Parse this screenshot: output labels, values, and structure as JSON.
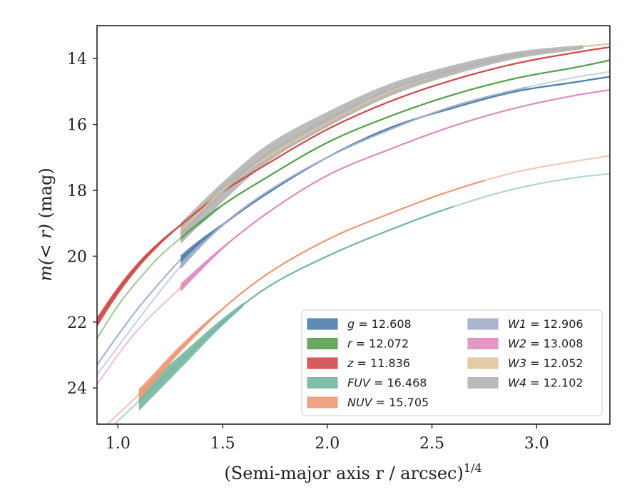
{
  "chart_data": {
    "type": "line",
    "xlabel": "(Semi-major axis r / arcsec)",
    "xlabel_exponent": "1/4",
    "ylabel_math": "m(< r)",
    "ylabel_unit": " (mag)",
    "xlim": [
      0.9,
      3.35
    ],
    "ylim": [
      25.1,
      13.0
    ],
    "y_inverted": true,
    "xticks": [
      1.0,
      1.5,
      2.0,
      2.5,
      3.0
    ],
    "xtick_labels": [
      "1.0",
      "1.5",
      "2.0",
      "2.5",
      "3.0"
    ],
    "yticks": [
      14,
      16,
      18,
      20,
      22,
      24
    ],
    "ytick_labels": [
      "14",
      "16",
      "18",
      "20",
      "22",
      "24"
    ],
    "grid": false,
    "legend_placement": "lower-right",
    "legend_columns": 2,
    "series": [
      {
        "name": "g",
        "value": "12.608",
        "color": "#4c7fad",
        "x": [
          0.9,
          1.0,
          1.1,
          1.2,
          1.3,
          1.5,
          1.7,
          2.0,
          2.3,
          2.6,
          2.9,
          3.2,
          3.35
        ],
        "y": [
          23.3,
          22.4,
          21.55,
          20.8,
          20.1,
          19.05,
          18.15,
          17.0,
          16.1,
          15.5,
          15.0,
          14.7,
          14.55
        ],
        "solid_range": [
          1.3,
          3.35
        ],
        "band_x": [
          1.3,
          1.55
        ],
        "band_width": 0.25
      },
      {
        "name": "r",
        "value": "12.072",
        "color": "#59a14f",
        "x": [
          0.9,
          1.0,
          1.1,
          1.2,
          1.3,
          1.5,
          1.7,
          2.0,
          2.3,
          2.6,
          2.9,
          3.2,
          3.35
        ],
        "y": [
          22.5,
          21.5,
          20.7,
          20.0,
          19.45,
          18.45,
          17.65,
          16.55,
          15.75,
          15.1,
          14.6,
          14.25,
          14.05
        ],
        "solid_range": [
          1.3,
          3.35
        ],
        "band_x": [
          1.3,
          1.5
        ],
        "band_width": 0.25
      },
      {
        "name": "z",
        "value": "11.836",
        "color": "#d24b4b",
        "x": [
          0.9,
          1.0,
          1.1,
          1.2,
          1.3,
          1.5,
          1.7,
          2.0,
          2.3,
          2.6,
          2.9,
          3.2,
          3.35
        ],
        "y": [
          22.0,
          21.05,
          20.25,
          19.6,
          19.05,
          18.05,
          17.25,
          16.15,
          15.3,
          14.65,
          14.15,
          13.8,
          13.65
        ],
        "solid_range": [
          0.9,
          3.35
        ],
        "band_x": [
          0.9,
          1.3
        ],
        "band_width": 0.3
      },
      {
        "name": "FUV",
        "value": "16.468",
        "color": "#76b7a2",
        "x": [
          0.9,
          1.0,
          1.1,
          1.3,
          1.5,
          1.7,
          2.0,
          2.3,
          2.6,
          2.9,
          3.2,
          3.35
        ],
        "y": [
          25.6,
          25.0,
          24.4,
          23.2,
          22.0,
          21.0,
          20.0,
          19.2,
          18.5,
          17.95,
          17.6,
          17.5
        ],
        "solid_range": [
          1.1,
          2.6
        ],
        "band_x": [
          1.1,
          1.6
        ],
        "band_width": 0.6
      },
      {
        "name": "NUV",
        "value": "15.705",
        "color": "#ec9a78",
        "x": [
          0.9,
          1.0,
          1.1,
          1.3,
          1.5,
          1.7,
          2.0,
          2.3,
          2.6,
          2.9,
          3.2,
          3.35
        ],
        "y": [
          25.4,
          24.8,
          24.2,
          22.8,
          21.6,
          20.6,
          19.5,
          18.7,
          18.0,
          17.45,
          17.1,
          16.95
        ],
        "solid_range": [
          1.1,
          2.75
        ],
        "band_x": [
          1.1,
          1.5
        ],
        "band_width": 0.35
      },
      {
        "name": "W1",
        "value": "12.906",
        "color": "#a2aec8",
        "x": [
          0.9,
          1.0,
          1.1,
          1.3,
          1.5,
          1.7,
          2.0,
          2.3,
          2.6,
          2.9,
          3.2,
          3.35
        ],
        "y": [
          23.6,
          22.75,
          21.9,
          20.3,
          19.05,
          18.1,
          17.0,
          16.15,
          15.45,
          14.95,
          14.55,
          14.4
        ],
        "solid_range": [
          1.3,
          2.95
        ],
        "band_x": [
          1.3,
          1.55
        ],
        "band_width": 0.2
      },
      {
        "name": "W2",
        "value": "13.008",
        "color": "#df8fbf",
        "x": [
          0.9,
          1.0,
          1.1,
          1.3,
          1.5,
          1.7,
          2.0,
          2.3,
          2.6,
          2.9,
          3.2,
          3.35
        ],
        "y": [
          23.9,
          23.0,
          22.2,
          20.95,
          19.75,
          18.75,
          17.55,
          16.75,
          16.05,
          15.5,
          15.1,
          14.95
        ],
        "solid_range": [
          1.3,
          3.35
        ],
        "band_x": [
          1.3,
          1.55
        ],
        "band_width": 0.25
      },
      {
        "name": "W3",
        "value": "12.052",
        "color": "#e2c49f",
        "x": [
          1.3,
          1.5,
          1.7,
          2.0,
          2.3,
          2.6,
          2.9,
          3.2,
          3.35
        ],
        "y": [
          19.25,
          18.0,
          17.05,
          15.95,
          15.0,
          14.35,
          13.9,
          13.65,
          13.55
        ],
        "solid_range": [
          1.3,
          3.35
        ],
        "band_x": [
          1.3,
          3.2
        ],
        "band_width": 0.3
      },
      {
        "name": "W4",
        "value": "12.102",
        "color": "#b4b4b4",
        "x": [
          1.3,
          1.5,
          1.7,
          2.0,
          2.3,
          2.6,
          2.9,
          3.22
        ],
        "y": [
          19.3,
          18.05,
          16.95,
          15.85,
          14.95,
          14.35,
          13.9,
          13.65
        ],
        "solid_range": [
          1.3,
          3.22
        ],
        "band_x": [
          1.3,
          3.22
        ],
        "band_width": 0.65
      }
    ]
  }
}
